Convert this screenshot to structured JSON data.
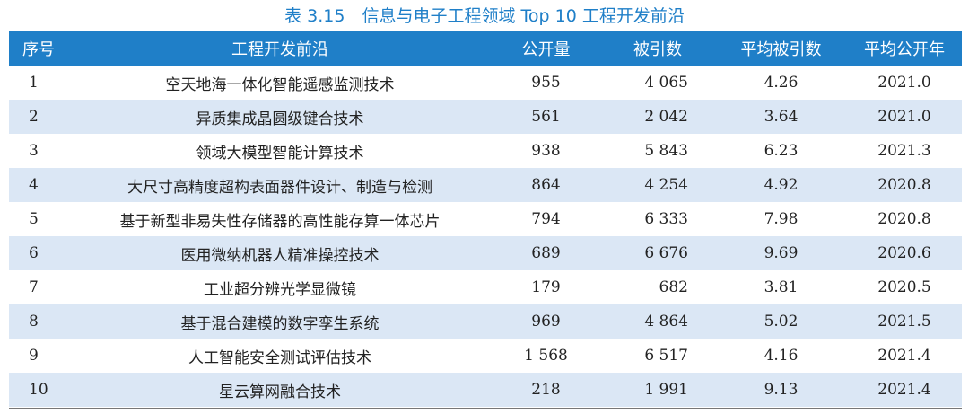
{
  "title": "表 3.15　信息与电子工程领域 Top 10 工程开发前沿",
  "headers": [
    "序号",
    "工程开发前沿",
    "公开量",
    "被引数",
    "平均被引数",
    "平均公开年"
  ],
  "rows": [
    [
      "1",
      "空天地海一体化智能遥感监测技术",
      "955",
      "4 065",
      "4.26",
      "2021.0"
    ],
    [
      "2",
      "异质集成晶圆级键合技术",
      "561",
      "2 042",
      "3.64",
      "2021.0"
    ],
    [
      "3",
      "领域大模型智能计算技术",
      "938",
      "5 843",
      "6.23",
      "2021.3"
    ],
    [
      "4",
      "大尺寸高精度超构表面器件设计、制造与检测",
      "864",
      "4 254",
      "4.92",
      "2020.8"
    ],
    [
      "5",
      "基于新型非易失性存储器的高性能存算一体芯片",
      "794",
      "6 333",
      "7.98",
      "2020.8"
    ],
    [
      "6",
      "医用微纳机器人精准操控技术",
      "689",
      "6 676",
      "9.69",
      "2020.6"
    ],
    [
      "7",
      "工业超分辨光学显微镜",
      "179",
      "682",
      "3.81",
      "2020.5"
    ],
    [
      "8",
      "基于混合建模的数字孪生系统",
      "969",
      "4 864",
      "5.02",
      "2021.5"
    ],
    [
      "9",
      "人工智能安全测试评估技术",
      "1 568",
      "6 517",
      "4.16",
      "2021.4"
    ],
    [
      "10",
      "星云算网融合技术",
      "218",
      "1 991",
      "9.13",
      "2021.4"
    ]
  ],
  "colors": {
    "accent": "#1f7fc8",
    "stripe": "#dbe7f5"
  }
}
